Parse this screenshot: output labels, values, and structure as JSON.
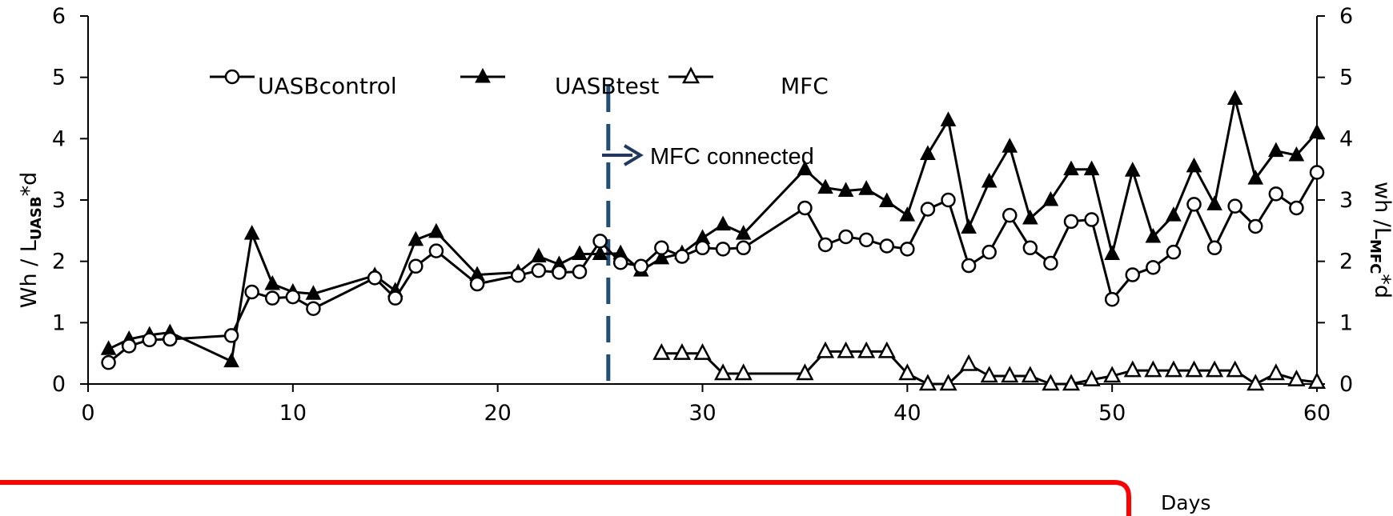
{
  "chart_data": {
    "type": "line",
    "xlabel": "Days",
    "ylabel_left_main": "Wh / L",
    "ylabel_left_sub": "UASB",
    "ylabel_left_suffix": "*d",
    "ylabel_right_main": "wh /L",
    "ylabel_right_sub": "MFC",
    "ylabel_right_suffix": "*d",
    "xlim": [
      0,
      60
    ],
    "ylim": [
      0,
      6
    ],
    "x_ticks": [
      0,
      10,
      20,
      30,
      40,
      50,
      60
    ],
    "y_ticks": [
      0,
      1,
      2,
      3,
      4,
      5,
      6
    ],
    "legend_position": "top",
    "annotation": {
      "text": "MFC connected",
      "x": 25.4
    },
    "colors": {
      "series": "#000000",
      "divider": "#1f4e79",
      "arrow": "#1f3864",
      "highlight_box": "#ff0000"
    },
    "series": [
      {
        "name": "UASBcontrol",
        "marker": "open-circle",
        "x": [
          1,
          2,
          3,
          4,
          7,
          8,
          9,
          10,
          11,
          14,
          15,
          16,
          17,
          19,
          21,
          22,
          23,
          24,
          25,
          26,
          27,
          28,
          29,
          30,
          31,
          32,
          35,
          36,
          37,
          38,
          39,
          40,
          41,
          42,
          43,
          44,
          45,
          46,
          47,
          48,
          49,
          50,
          51,
          52,
          53,
          54,
          55,
          56,
          57,
          58,
          59,
          60
        ],
        "y": [
          0.35,
          0.62,
          0.72,
          0.73,
          0.79,
          1.5,
          1.4,
          1.42,
          1.23,
          1.73,
          1.4,
          1.92,
          2.17,
          1.63,
          1.77,
          1.85,
          1.82,
          1.83,
          2.33,
          1.98,
          1.92,
          2.22,
          2.08,
          2.22,
          2.2,
          2.22,
          2.87,
          2.27,
          2.4,
          2.35,
          2.25,
          2.2,
          2.85,
          3.0,
          1.93,
          2.15,
          2.75,
          2.22,
          1.97,
          2.65,
          2.68,
          1.38,
          1.78,
          1.9,
          2.15,
          2.93,
          2.22,
          2.9,
          2.57,
          3.1,
          2.87,
          3.45
        ]
      },
      {
        "name": "UASBtest",
        "marker": "filled-triangle",
        "x": [
          1,
          2,
          3,
          4,
          7,
          8,
          9,
          10,
          11,
          14,
          15,
          16,
          17,
          19,
          21,
          22,
          23,
          24,
          25,
          26,
          27,
          28,
          29,
          30,
          31,
          32,
          35,
          36,
          37,
          38,
          39,
          40,
          41,
          42,
          43,
          44,
          45,
          46,
          47,
          48,
          49,
          50,
          51,
          52,
          53,
          54,
          55,
          56,
          57,
          58,
          59,
          60
        ],
        "y": [
          0.57,
          0.73,
          0.8,
          0.84,
          0.37,
          2.45,
          1.63,
          1.5,
          1.47,
          1.77,
          1.52,
          2.35,
          2.48,
          1.78,
          1.82,
          2.08,
          1.95,
          2.12,
          2.12,
          2.13,
          1.85,
          2.05,
          2.13,
          2.38,
          2.6,
          2.45,
          3.5,
          3.2,
          3.15,
          3.18,
          2.98,
          2.75,
          3.75,
          4.3,
          2.55,
          3.3,
          3.87,
          2.7,
          3.0,
          3.5,
          3.5,
          2.12,
          3.48,
          2.4,
          2.75,
          3.55,
          2.93,
          4.65,
          3.35,
          3.8,
          3.73,
          4.1
        ]
      },
      {
        "name": "MFC",
        "marker": "open-triangle",
        "x": [
          28,
          29,
          30,
          31,
          32,
          35,
          36,
          37,
          38,
          39,
          40,
          41,
          42,
          43,
          44,
          45,
          46,
          47,
          48,
          49,
          50,
          51,
          52,
          53,
          54,
          55,
          56,
          57,
          58,
          59,
          60
        ],
        "y": [
          0.5,
          0.5,
          0.5,
          0.17,
          0.17,
          0.17,
          0.53,
          0.53,
          0.53,
          0.53,
          0.17,
          0.0,
          0.0,
          0.32,
          0.13,
          0.13,
          0.13,
          0.0,
          0.0,
          0.07,
          0.13,
          0.22,
          0.22,
          0.22,
          0.22,
          0.22,
          0.22,
          0.0,
          0.17,
          0.07,
          0.03
        ]
      }
    ]
  }
}
